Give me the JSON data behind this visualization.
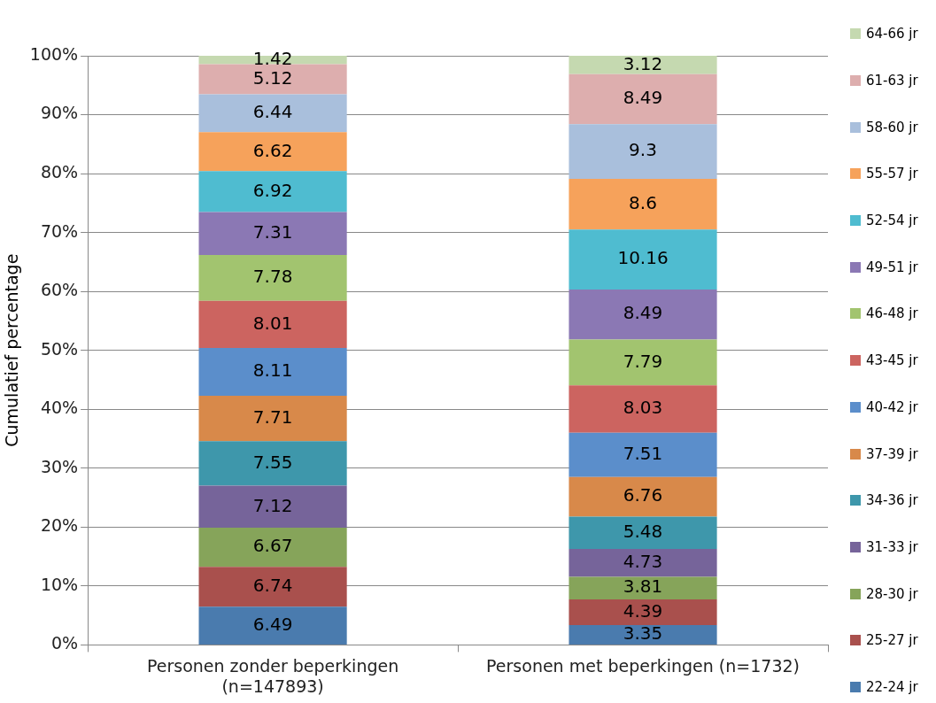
{
  "chart_data": {
    "type": "bar",
    "stacked": true,
    "ylabel": "Cumulatief percentage",
    "categories": [
      "Personen zonder beperkingen\n(n=147893)",
      "Personen met beperkingen (n=1732)"
    ],
    "series": [
      {
        "name": "22-24 jr",
        "color": "#4a7bae",
        "values": [
          6.49,
          3.35
        ]
      },
      {
        "name": "25-27 jr",
        "color": "#a9504d",
        "values": [
          6.74,
          4.39
        ]
      },
      {
        "name": "28-30 jr",
        "color": "#86a45a",
        "values": [
          6.67,
          3.81
        ]
      },
      {
        "name": "31-33 jr",
        "color": "#76649a",
        "values": [
          7.12,
          4.73
        ]
      },
      {
        "name": "34-36 jr",
        "color": "#3e97ab",
        "values": [
          7.55,
          5.48
        ]
      },
      {
        "name": "37-39 jr",
        "color": "#d8894a",
        "values": [
          7.71,
          6.76
        ]
      },
      {
        "name": "40-42 jr",
        "color": "#5b8ecb",
        "values": [
          8.11,
          7.51
        ]
      },
      {
        "name": "43-45 jr",
        "color": "#cc6460",
        "values": [
          8.01,
          8.03
        ]
      },
      {
        "name": "46-48 jr",
        "color": "#a2c46f",
        "values": [
          7.78,
          7.79
        ]
      },
      {
        "name": "49-51 jr",
        "color": "#8b78b4",
        "values": [
          7.31,
          8.49
        ]
      },
      {
        "name": "52-54 jr",
        "color": "#4fbcd0",
        "values": [
          6.92,
          10.16
        ]
      },
      {
        "name": "55-57 jr",
        "color": "#f6a25b",
        "values": [
          6.62,
          8.6
        ]
      },
      {
        "name": "58-60 jr",
        "color": "#a9bfdc",
        "values": [
          6.44,
          9.3
        ]
      },
      {
        "name": "61-63 jr",
        "color": "#ddaeae",
        "values": [
          5.12,
          8.49
        ]
      },
      {
        "name": "64-66 jr",
        "color": "#c5d9b0",
        "values": [
          1.42,
          3.12
        ]
      }
    ],
    "ylim": [
      0,
      100
    ],
    "yticks": [
      {
        "value": 0,
        "label": "0%"
      },
      {
        "value": 10,
        "label": "10%"
      },
      {
        "value": 20,
        "label": "20%"
      },
      {
        "value": 30,
        "label": "30%"
      },
      {
        "value": 40,
        "label": "40%"
      },
      {
        "value": 50,
        "label": "50%"
      },
      {
        "value": 60,
        "label": "60%"
      },
      {
        "value": 70,
        "label": "70%"
      },
      {
        "value": 80,
        "label": "80%"
      },
      {
        "value": 90,
        "label": "90%"
      },
      {
        "value": 100,
        "label": "100%"
      }
    ],
    "grid": "y",
    "legend": "right",
    "data_labels": true
  }
}
